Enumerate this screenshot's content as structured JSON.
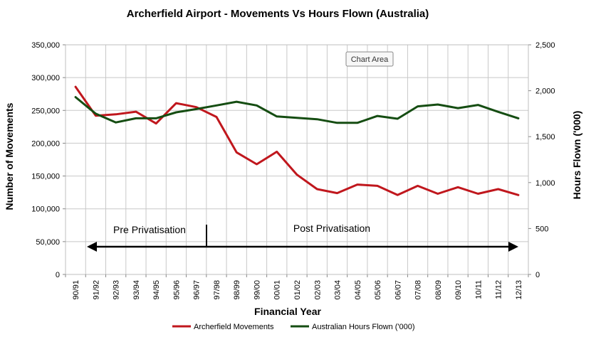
{
  "chart_data": {
    "type": "line",
    "title": "Archerfield Airport - Movements Vs Hours Flown (Australia)",
    "xlabel": "Financial Year",
    "ylabel": "Number of Movements",
    "y2label": "Hours Flown ('000)",
    "categories": [
      "90/91",
      "91/92",
      "92/93",
      "93/94",
      "94/95",
      "95/96",
      "96/97",
      "97/98",
      "98/99",
      "99/00",
      "00/01",
      "01/02",
      "02/03",
      "03/04",
      "04/05",
      "05/06",
      "06/07",
      "07/08",
      "08/09",
      "09/10",
      "10/11",
      "11/12",
      "12/13"
    ],
    "ylim": [
      0,
      350000
    ],
    "y2lim": [
      0,
      2500
    ],
    "y_ticks": [
      "0",
      "50,000",
      "100,000",
      "150,000",
      "200,000",
      "250,000",
      "300,000",
      "350,000"
    ],
    "y2_ticks": [
      "0",
      "500",
      "1,000",
      "1,500",
      "2,000",
      "2,500"
    ],
    "grid": true,
    "legend_position": "bottom",
    "series": [
      {
        "name": "Archerfield Movements",
        "axis": "left",
        "color": "#c0171d",
        "values": [
          286000,
          242000,
          244000,
          248000,
          230000,
          261000,
          255000,
          240000,
          186000,
          168000,
          187000,
          152000,
          130000,
          124000,
          137000,
          135000,
          121000,
          135000,
          123000,
          133000,
          123000,
          130000,
          121000
        ]
      },
      {
        "name": "Australian Hours Flown ('000)",
        "axis": "right",
        "color": "#154d12",
        "values": [
          1930,
          1750,
          1655,
          1700,
          1700,
          1765,
          1800,
          1840,
          1880,
          1840,
          1720,
          1705,
          1690,
          1650,
          1650,
          1725,
          1695,
          1830,
          1850,
          1810,
          1845,
          1770,
          1700
        ]
      }
    ],
    "annotations": {
      "pre_label": "Pre Privatisation",
      "post_label": "Post Privatisation"
    },
    "tooltip": "Chart Area"
  }
}
